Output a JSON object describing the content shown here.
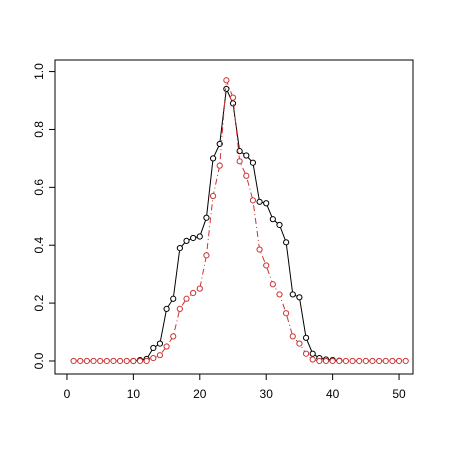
{
  "chart_data": {
    "type": "line",
    "x": [
      1,
      2,
      3,
      4,
      5,
      6,
      7,
      8,
      9,
      10,
      11,
      12,
      13,
      14,
      15,
      16,
      17,
      18,
      19,
      20,
      21,
      22,
      23,
      24,
      25,
      26,
      27,
      28,
      29,
      30,
      31,
      32,
      33,
      34,
      35,
      36,
      37,
      38,
      39,
      40,
      41,
      42,
      43,
      44,
      45,
      46,
      47,
      48,
      49,
      50,
      51
    ],
    "series": [
      {
        "color": "#000000",
        "values": [
          null,
          null,
          null,
          null,
          null,
          null,
          null,
          null,
          null,
          0,
          0.003,
          0.007,
          0.045,
          0.06,
          0.18,
          0.215,
          0.39,
          0.415,
          0.425,
          0.43,
          0.495,
          0.7,
          0.75,
          0.94,
          0.89,
          0.725,
          0.71,
          0.685,
          0.55,
          0.545,
          0.49,
          0.47,
          0.41,
          0.23,
          0.22,
          0.08,
          0.025,
          0.01,
          0.005,
          0.003,
          0.001,
          null,
          null,
          null,
          null,
          null,
          null,
          null,
          null,
          null,
          null
        ]
      },
      {
        "color": "#cd3333",
        "values": [
          0,
          0,
          0,
          0,
          0,
          0,
          0,
          0,
          0,
          0,
          0,
          0,
          0.01,
          0.02,
          0.05,
          0.085,
          0.18,
          0.215,
          0.235,
          0.25,
          0.365,
          0.57,
          0.675,
          0.97,
          0.91,
          0.69,
          0.64,
          0.555,
          0.385,
          0.33,
          0.265,
          0.23,
          0.165,
          0.085,
          0.06,
          0.025,
          0.005,
          0,
          0,
          0,
          0,
          0,
          0,
          0,
          0,
          0,
          0,
          0,
          0,
          0,
          0
        ]
      }
    ],
    "xlim": [
      -1.8,
      52.1
    ],
    "ylim": [
      -0.045,
      1.04
    ],
    "xticks": [
      0,
      10,
      20,
      30,
      40,
      50
    ],
    "yticks": [
      {
        "value": 0,
        "label": "0.0"
      },
      0.2,
      0.4,
      0.6,
      0.8,
      {
        "value": 1,
        "label": "1.0"
      }
    ]
  }
}
